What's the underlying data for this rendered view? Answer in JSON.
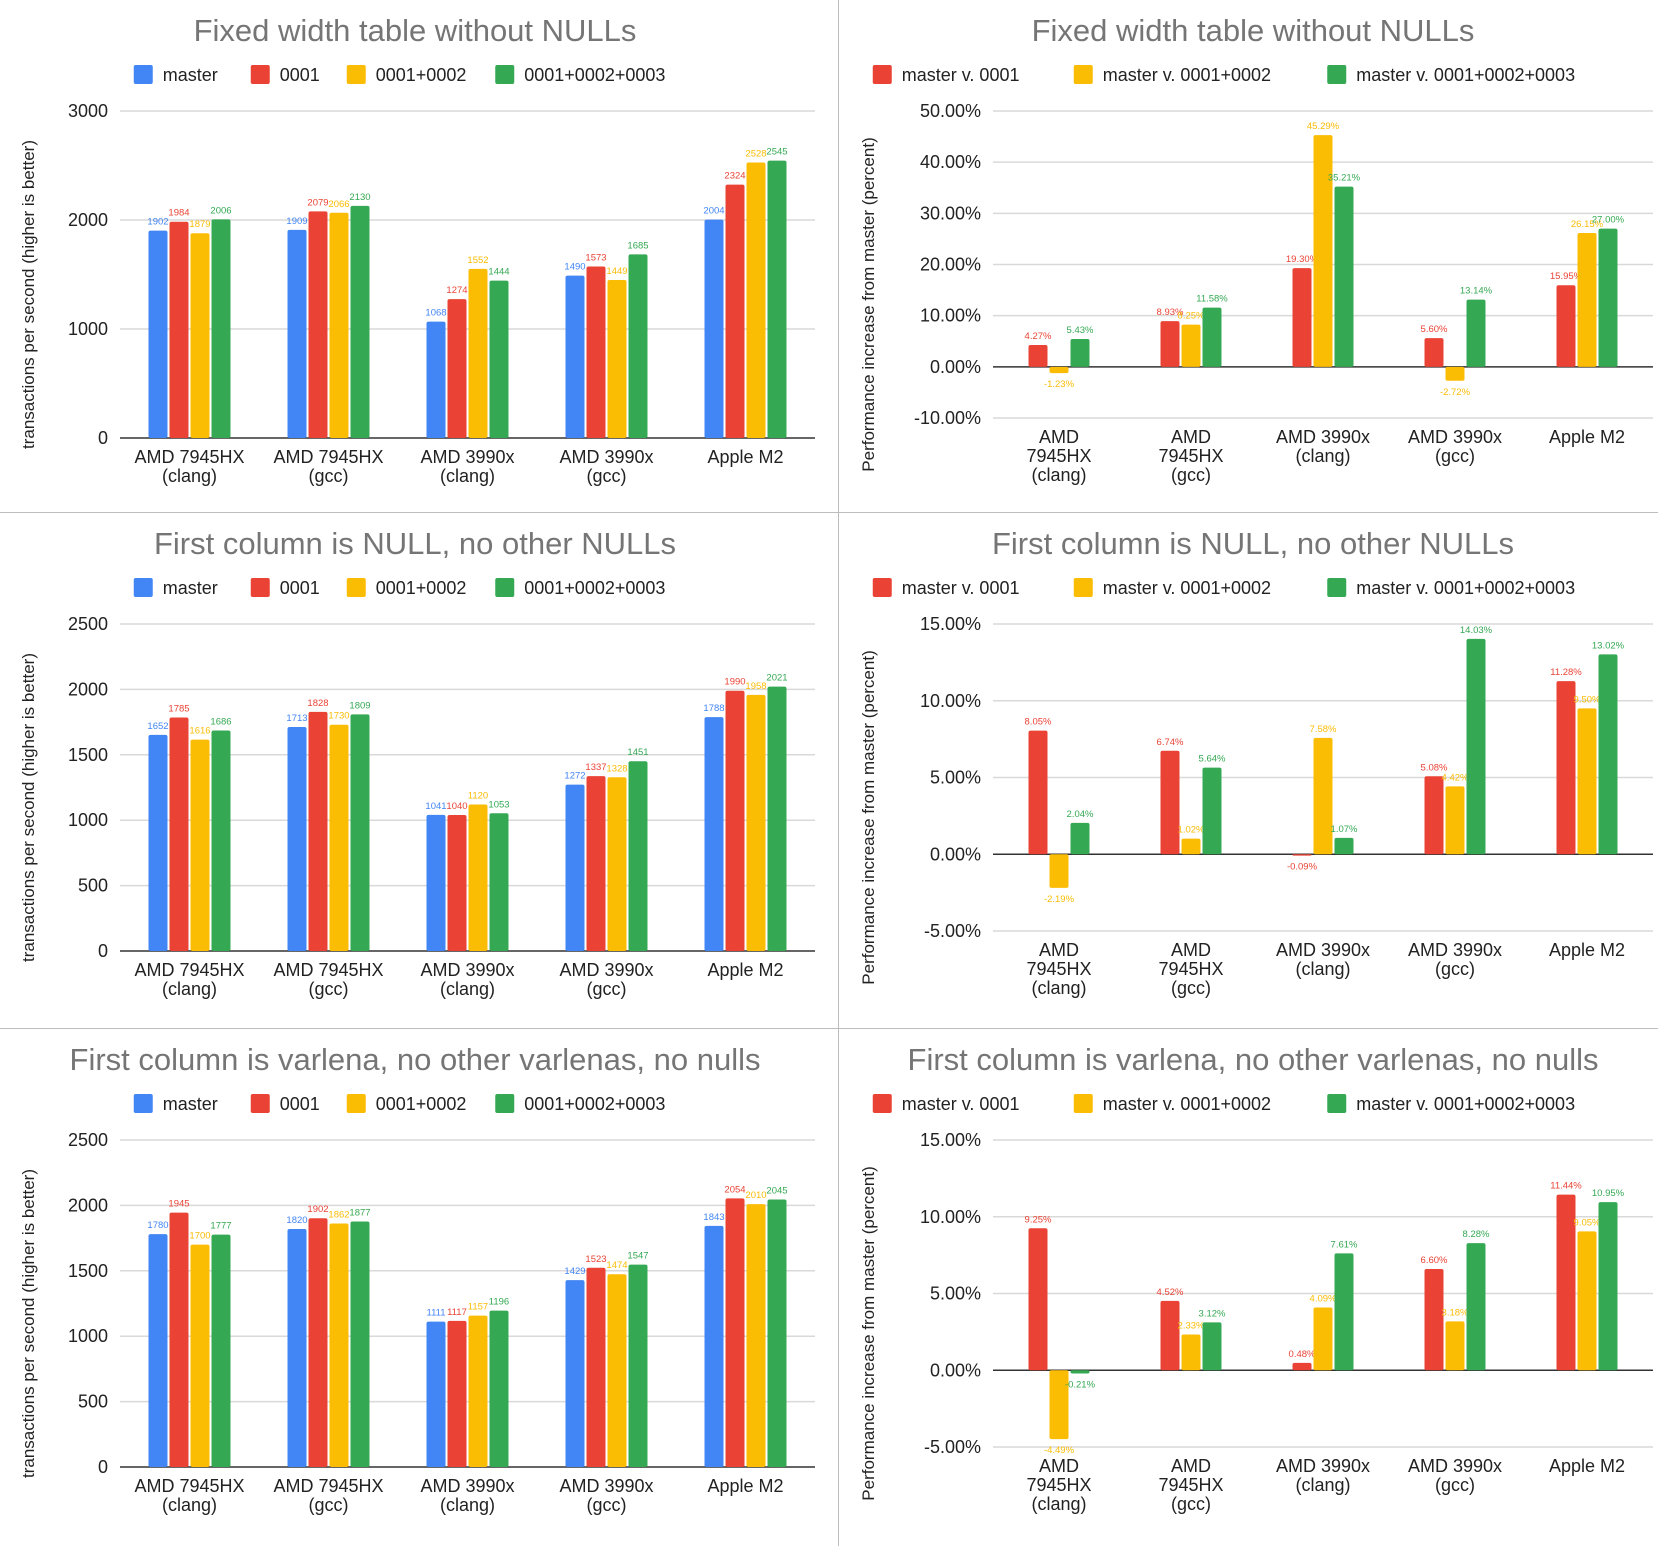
{
  "colors": {
    "master": "#4285F4",
    "0001": "#EA4335",
    "0001+0002": "#FBBC04",
    "0001+0002+0003": "#34A853",
    "title": "#757575",
    "grid": "#d9d9d9",
    "axis": "#333333"
  },
  "chart_data": [
    {
      "type": "bar",
      "title": "Fixed width table without NULLs",
      "ylabel": "transactions per second (higher is better)",
      "ylim": [
        0,
        3000
      ],
      "yticks": [
        0,
        1000,
        2000,
        3000
      ],
      "ytick_labels": [
        "0",
        "1000",
        "2000",
        "3000"
      ],
      "categories": [
        [
          "AMD 7945HX",
          "(clang)"
        ],
        [
          "AMD 7945HX",
          "(gcc)"
        ],
        [
          "AMD 3990x",
          "(clang)"
        ],
        [
          "AMD 3990x",
          "(gcc)"
        ],
        [
          "Apple M2"
        ]
      ],
      "series": [
        {
          "name": "master",
          "color": "#4285F4",
          "values": [
            1902,
            1909,
            1068,
            1490,
            2004
          ],
          "labels": [
            "1902",
            "1909",
            "1068",
            "1490",
            "2004"
          ]
        },
        {
          "name": "0001",
          "color": "#EA4335",
          "values": [
            1984,
            2079,
            1274,
            1573,
            2324
          ],
          "labels": [
            "1984",
            "2079",
            "1274",
            "1573",
            "2324"
          ]
        },
        {
          "name": "0001+0002",
          "color": "#FBBC04",
          "values": [
            1879,
            2066,
            1552,
            1449,
            2528
          ],
          "labels": [
            "1879",
            "2066",
            "1552",
            "1449",
            "2528"
          ]
        },
        {
          "name": "0001+0002+0003",
          "color": "#34A853",
          "values": [
            2006,
            2130,
            1444,
            1685,
            2545
          ],
          "labels": [
            "2006",
            "2130",
            "1444",
            "1685",
            "2545"
          ]
        }
      ],
      "legend": "top",
      "grid": true
    },
    {
      "type": "bar",
      "title": "Fixed width table without NULLs",
      "ylabel": "Performance increase from master (percent)",
      "ylim": [
        -10,
        50
      ],
      "yticks": [
        -10,
        0,
        10,
        20,
        30,
        40,
        50
      ],
      "ytick_labels": [
        "-10.00%",
        "0.00%",
        "10.00%",
        "20.00%",
        "30.00%",
        "40.00%",
        "50.00%"
      ],
      "categories": [
        [
          "AMD",
          "7945HX",
          "(clang)"
        ],
        [
          "AMD",
          "7945HX",
          "(gcc)"
        ],
        [
          "AMD 3990x",
          "(clang)"
        ],
        [
          "AMD 3990x",
          "(gcc)"
        ],
        [
          "Apple M2"
        ]
      ],
      "series": [
        {
          "name": "master v. 0001",
          "color": "#EA4335",
          "values": [
            4.27,
            8.93,
            19.3,
            5.6,
            15.95
          ],
          "labels": [
            "4.27%",
            "8.93%",
            "19.30%",
            "5.60%",
            "15.95%"
          ]
        },
        {
          "name": "master v. 0001+0002",
          "color": "#FBBC04",
          "values": [
            -1.23,
            8.25,
            45.29,
            -2.72,
            26.15
          ],
          "labels": [
            "-1.23%",
            "8.25%",
            "45.29%",
            "-2.72%",
            "26.15%"
          ]
        },
        {
          "name": "master v. 0001+0002+0003",
          "color": "#34A853",
          "values": [
            5.43,
            11.58,
            35.21,
            13.14,
            27.0
          ],
          "labels": [
            "5.43%",
            "11.58%",
            "35.21%",
            "13.14%",
            "27.00%"
          ]
        }
      ],
      "legend": "top",
      "grid": false
    },
    {
      "type": "bar",
      "title": "First column is NULL, no other NULLs",
      "ylabel": "transactions per second (higher is better)",
      "ylim": [
        0,
        2500
      ],
      "yticks": [
        0,
        500,
        1000,
        1500,
        2000,
        2500
      ],
      "ytick_labels": [
        "0",
        "500",
        "1000",
        "1500",
        "2000",
        "2500"
      ],
      "categories": [
        [
          "AMD 7945HX",
          "(clang)"
        ],
        [
          "AMD 7945HX",
          "(gcc)"
        ],
        [
          "AMD 3990x",
          "(clang)"
        ],
        [
          "AMD 3990x",
          "(gcc)"
        ],
        [
          "Apple M2"
        ]
      ],
      "series": [
        {
          "name": "master",
          "color": "#4285F4",
          "values": [
            1652,
            1713,
            1041,
            1272,
            1788
          ],
          "labels": [
            "1652",
            "1713",
            "1041",
            "1272",
            "1788"
          ]
        },
        {
          "name": "0001",
          "color": "#EA4335",
          "values": [
            1785,
            1828,
            1040,
            1337,
            1990
          ],
          "labels": [
            "1785",
            "1828",
            "1040",
            "1337",
            "1990"
          ]
        },
        {
          "name": "0001+0002",
          "color": "#FBBC04",
          "values": [
            1616,
            1730,
            1120,
            1328,
            1958
          ],
          "labels": [
            "1616",
            "1730",
            "1120",
            "1328",
            "1958"
          ]
        },
        {
          "name": "0001+0002+0003",
          "color": "#34A853",
          "values": [
            1686,
            1809,
            1053,
            1451,
            2021
          ],
          "labels": [
            "1686",
            "1809",
            "1053",
            "1451",
            "2021"
          ]
        }
      ],
      "legend": "top",
      "grid": true
    },
    {
      "type": "bar",
      "title": "First column is NULL, no other NULLs",
      "ylabel": "Performance increase from master (percent)",
      "ylim": [
        -5,
        15
      ],
      "yticks": [
        -5,
        0,
        5,
        10,
        15
      ],
      "ytick_labels": [
        "-5.00%",
        "0.00%",
        "5.00%",
        "10.00%",
        "15.00%"
      ],
      "categories": [
        [
          "AMD",
          "7945HX",
          "(clang)"
        ],
        [
          "AMD",
          "7945HX",
          "(gcc)"
        ],
        [
          "AMD 3990x",
          "(clang)"
        ],
        [
          "AMD 3990x",
          "(gcc)"
        ],
        [
          "Apple M2"
        ]
      ],
      "series": [
        {
          "name": "master v. 0001",
          "color": "#EA4335",
          "values": [
            8.05,
            6.74,
            -0.09,
            5.08,
            11.28
          ],
          "labels": [
            "8.05%",
            "6.74%",
            "-0.09%",
            "5.08%",
            "11.28%"
          ]
        },
        {
          "name": "master v. 0001+0002",
          "color": "#FBBC04",
          "values": [
            -2.19,
            1.02,
            7.58,
            4.42,
            9.5
          ],
          "labels": [
            "-2.19%",
            "1.02%",
            "7.58%",
            "4.42%",
            "9.50%"
          ]
        },
        {
          "name": "master v. 0001+0002+0003",
          "color": "#34A853",
          "values": [
            2.04,
            5.64,
            1.07,
            14.03,
            13.02
          ],
          "labels": [
            "2.04%",
            "5.64%",
            "1.07%",
            "14.03%",
            "13.02%"
          ]
        }
      ],
      "legend": "top",
      "grid": false
    },
    {
      "type": "bar",
      "title": "First column is varlena, no other varlenas, no nulls",
      "ylabel": "transactions per second (higher is better)",
      "ylim": [
        0,
        2500
      ],
      "yticks": [
        0,
        500,
        1000,
        1500,
        2000,
        2500
      ],
      "ytick_labels": [
        "0",
        "500",
        "1000",
        "1500",
        "2000",
        "2500"
      ],
      "categories": [
        [
          "AMD 7945HX",
          "(clang)"
        ],
        [
          "AMD 7945HX",
          "(gcc)"
        ],
        [
          "AMD 3990x",
          "(clang)"
        ],
        [
          "AMD 3990x",
          "(gcc)"
        ],
        [
          "Apple M2"
        ]
      ],
      "series": [
        {
          "name": "master",
          "color": "#4285F4",
          "values": [
            1780,
            1820,
            1111,
            1429,
            1843
          ],
          "labels": [
            "1780",
            "1820",
            "1111",
            "1429",
            "1843"
          ]
        },
        {
          "name": "0001",
          "color": "#EA4335",
          "values": [
            1945,
            1902,
            1117,
            1523,
            2054
          ],
          "labels": [
            "1945",
            "1902",
            "1117",
            "1523",
            "2054"
          ]
        },
        {
          "name": "0001+0002",
          "color": "#FBBC04",
          "values": [
            1700,
            1862,
            1157,
            1474,
            2010
          ],
          "labels": [
            "1700",
            "1862",
            "1157",
            "1474",
            "2010"
          ]
        },
        {
          "name": "0001+0002+0003",
          "color": "#34A853",
          "values": [
            1777,
            1877,
            1196,
            1547,
            2045
          ],
          "labels": [
            "1777",
            "1877",
            "1196",
            "1547",
            "2045"
          ]
        }
      ],
      "legend": "top",
      "grid": true
    },
    {
      "type": "bar",
      "title": "First column is varlena, no other varlenas, no nulls",
      "ylabel": "Performance increase from master (percent)",
      "ylim": [
        -5,
        15
      ],
      "yticks": [
        -5,
        0,
        5,
        10,
        15
      ],
      "ytick_labels": [
        "-5.00%",
        "0.00%",
        "5.00%",
        "10.00%",
        "15.00%"
      ],
      "categories": [
        [
          "AMD",
          "7945HX",
          "(clang)"
        ],
        [
          "AMD",
          "7945HX",
          "(gcc)"
        ],
        [
          "AMD 3990x",
          "(clang)"
        ],
        [
          "AMD 3990x",
          "(gcc)"
        ],
        [
          "Apple M2"
        ]
      ],
      "series": [
        {
          "name": "master v. 0001",
          "color": "#EA4335",
          "values": [
            9.25,
            4.52,
            0.48,
            6.6,
            11.44
          ],
          "labels": [
            "9.25%",
            "4.52%",
            "0.48%",
            "6.60%",
            "11.44%"
          ]
        },
        {
          "name": "master v. 0001+0002",
          "color": "#FBBC04",
          "values": [
            -4.49,
            2.33,
            4.09,
            3.18,
            9.05
          ],
          "labels": [
            "-4.49%",
            "2.33%",
            "4.09%",
            "3.18%",
            "9.05%"
          ]
        },
        {
          "name": "master v. 0001+0002+0003",
          "color": "#34A853",
          "values": [
            -0.21,
            3.12,
            7.61,
            8.28,
            10.95
          ],
          "labels": [
            "-0.21%",
            "3.12%",
            "7.61%",
            "8.28%",
            "10.95%"
          ]
        }
      ],
      "legend": "top",
      "grid": false
    }
  ]
}
